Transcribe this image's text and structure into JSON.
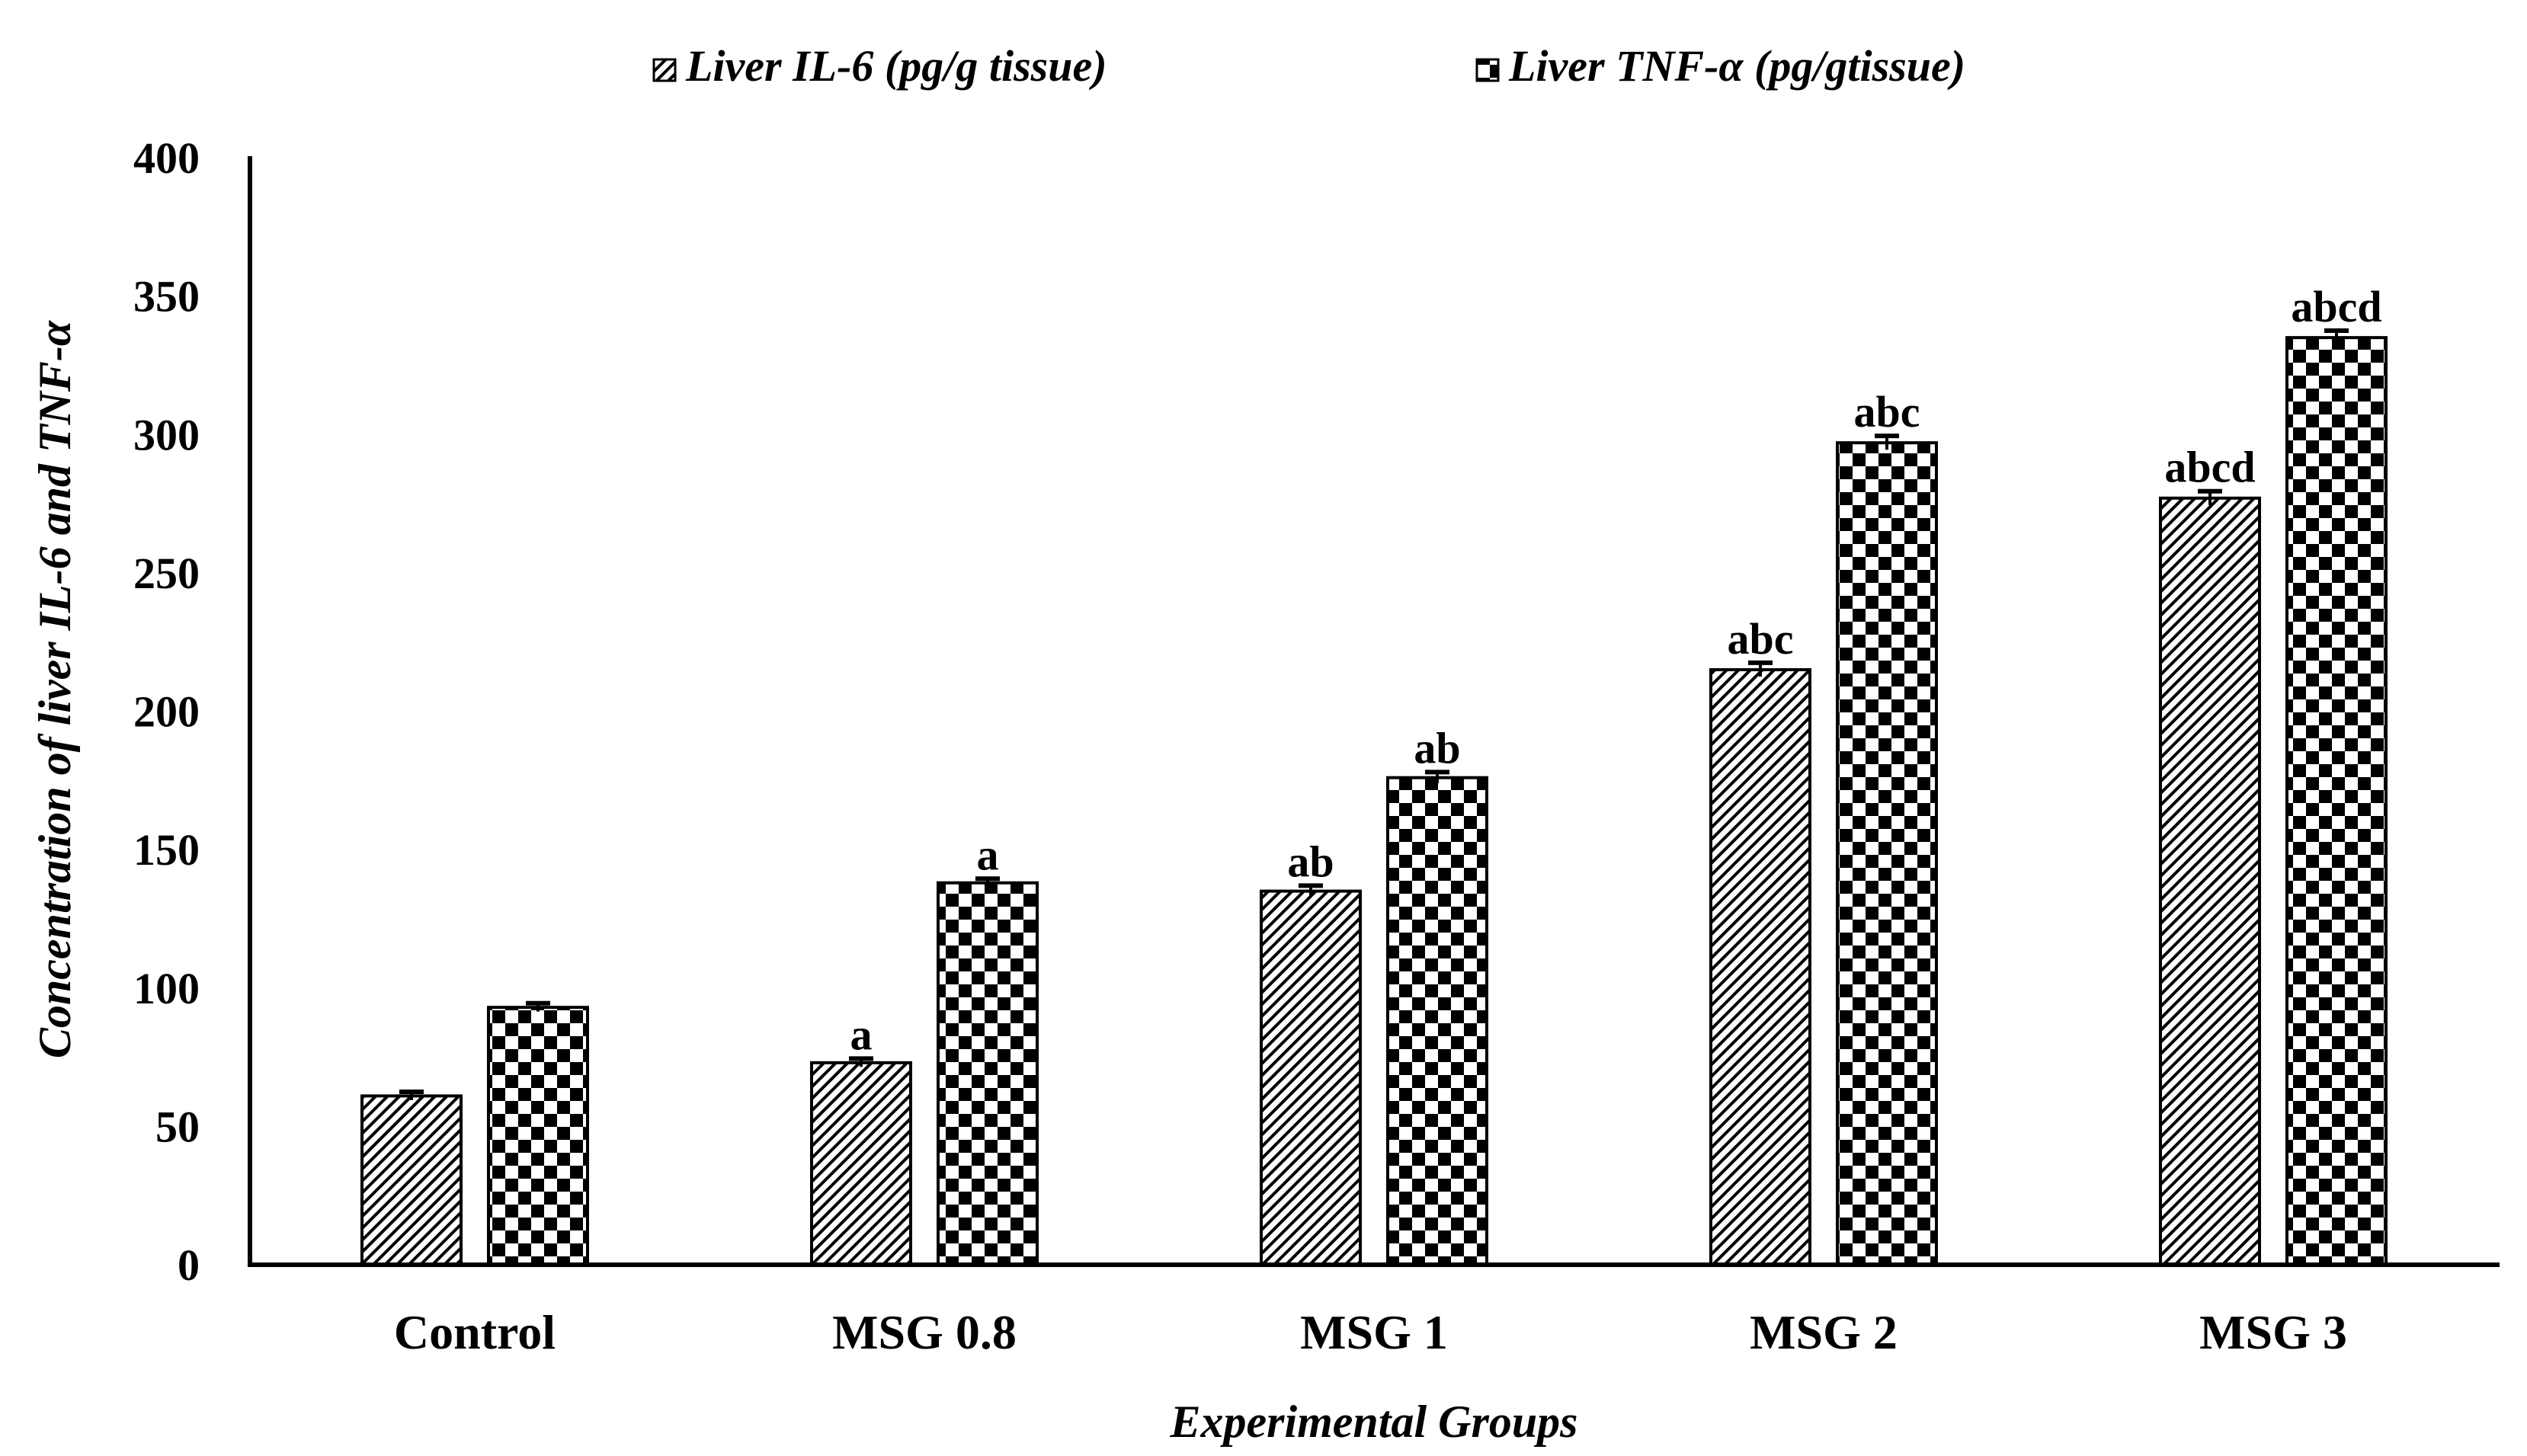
{
  "chart_data": {
    "type": "bar",
    "title": "",
    "categories": [
      "Control",
      "MSG 0.8",
      "MSG 1",
      "MSG 2",
      "MSG 3"
    ],
    "series": [
      {
        "name": "Liver IL-6 (pg/g tissue)",
        "pattern": "diagonal-hatch",
        "values": [
          61,
          73,
          135,
          215,
          277
        ],
        "error": [
          1.5,
          1.5,
          2,
          2.5,
          2.5
        ],
        "labels": [
          "",
          "a",
          "ab",
          "abc",
          "abcd"
        ]
      },
      {
        "name": "Liver TNF-α (pg/gtissue)",
        "pattern": "checkerboard",
        "values": [
          93,
          138,
          176,
          297,
          335
        ],
        "error": [
          1.5,
          1.5,
          2,
          2.5,
          2.5
        ],
        "labels": [
          "",
          "a",
          "ab",
          "abc",
          "abcd"
        ]
      }
    ],
    "xlabel": "Experimental Groups",
    "ylabel": "Concentration of liver IL-6 and TNF-α",
    "ylim": [
      0,
      400
    ],
    "yticks": [
      0,
      50,
      100,
      150,
      200,
      250,
      300,
      350,
      400
    ],
    "grid": false,
    "legend_position": "top-center"
  },
  "colors": {
    "bar_fill": "#ffffff",
    "pattern": "#000000",
    "axis": "#000000",
    "text": "#000000"
  }
}
